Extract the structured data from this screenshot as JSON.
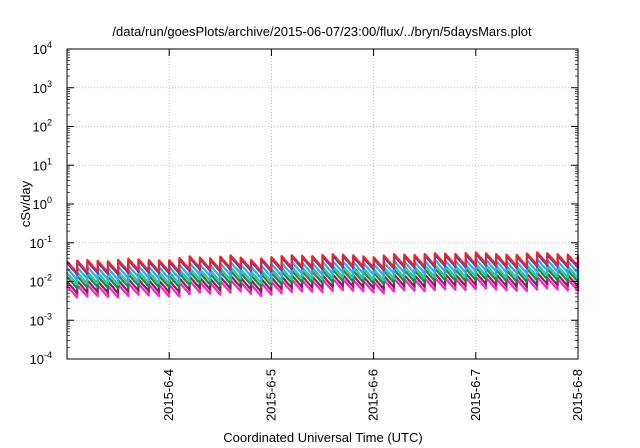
{
  "chart_data": {
    "type": "line",
    "title": "/data/run/goesPlots/archive/2015-06-07/23:00/flux/../bryn/5daysMars.plot",
    "xlabel": "Coordinated Universal Time (UTC)",
    "ylabel": "cSv/day",
    "yscale": "log",
    "ylim_exponent": [
      -4,
      4
    ],
    "y_tick_labels": [
      {
        "base": "10",
        "exp": "-4"
      },
      {
        "base": "10",
        "exp": "-3"
      },
      {
        "base": "10",
        "exp": "-2"
      },
      {
        "base": "10",
        "exp": "-1"
      },
      {
        "base": "10",
        "exp": "0"
      },
      {
        "base": "10",
        "exp": "1"
      },
      {
        "base": "10",
        "exp": "2"
      },
      {
        "base": "10",
        "exp": "3"
      },
      {
        "base": "10",
        "exp": "4"
      }
    ],
    "x_tick_labels": [
      "2015-6-4",
      "2015-6-5",
      "2015-6-6",
      "2015-6-7",
      "2015-6-8"
    ],
    "x_range_days": [
      "2015-06-03 00:00",
      "2015-06-08 00:00"
    ],
    "grid": true,
    "legend": "none",
    "sawtooth": {
      "period_hours": 2.4,
      "decay_ratio": 0.5,
      "envelope_day": [
        0.0,
        0.2,
        0.4,
        0.6,
        0.8,
        1.0,
        1.2,
        1.4,
        1.6,
        1.8,
        2.0,
        2.2,
        2.4,
        2.6,
        2.8,
        3.0,
        3.2,
        3.4,
        3.6,
        3.8,
        4.0,
        4.2,
        4.4,
        4.6,
        4.8,
        5.0
      ],
      "envelope_factor": [
        0.55,
        0.6,
        0.55,
        0.65,
        0.6,
        0.58,
        0.75,
        0.65,
        0.8,
        0.6,
        0.7,
        0.8,
        0.75,
        0.85,
        0.8,
        0.7,
        0.85,
        0.8,
        0.9,
        0.85,
        0.95,
        0.85,
        0.8,
        0.95,
        0.85,
        0.8
      ]
    },
    "series": [
      {
        "color": "#e8262a",
        "peak": 0.06
      },
      {
        "color": "#2b3fe0",
        "peak": 0.055
      },
      {
        "color": "#3aa7e8",
        "peak": 0.04
      },
      {
        "color": "#2bc4a8",
        "peak": 0.03
      },
      {
        "color": "#1a8a3a",
        "peak": 0.024
      },
      {
        "color": "#8a1f5a",
        "peak": 0.018
      },
      {
        "color": "#ff22cc",
        "peak": 0.014
      }
    ]
  }
}
